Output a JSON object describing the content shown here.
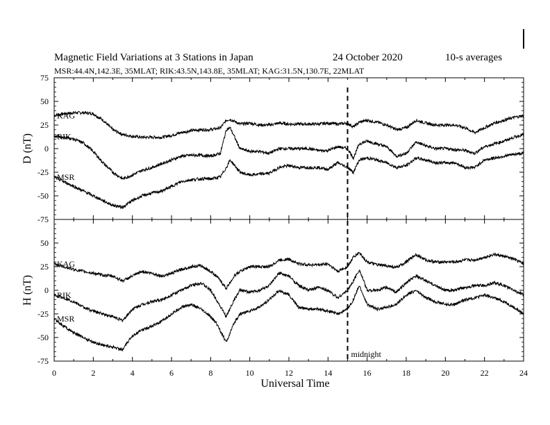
{
  "chart_data": {
    "type": "line",
    "title": "Magnetic Field Variations at 3 Stations in Japan",
    "date": "24 October 2020",
    "averaging": "10-s averages",
    "station_info": "MSR:44.4N,142.3E, 35MLAT;  RIK:43.5N,143.8E, 35MLAT;  KAG:31.5N,130.7E, 22MLAT",
    "xlabel": "Universal Time",
    "xlim": [
      0,
      24
    ],
    "xticks": [
      "0",
      "2",
      "4",
      "6",
      "8",
      "10",
      "12",
      "14",
      "16",
      "18",
      "20",
      "22",
      "24"
    ],
    "marker": {
      "x": 15,
      "label": "midnight"
    },
    "panels": [
      {
        "ylabel": "D (nT)",
        "ylim": [
          -75,
          75
        ],
        "yticks": [
          "75",
          "50",
          "25",
          "0",
          "-25",
          "-50",
          "-75"
        ],
        "series": [
          {
            "name": "KAG",
            "x": [
              0,
              0.5,
              1,
              1.5,
              2,
              2.5,
              3,
              3.5,
              4,
              4.5,
              5,
              5.5,
              6,
              6.5,
              7,
              7.5,
              8,
              8.5,
              8.8,
              9,
              9.5,
              10,
              10.5,
              11,
              11.5,
              12,
              12.5,
              13,
              13.5,
              14,
              14.5,
              15,
              15.3,
              15.6,
              16,
              16.5,
              17,
              17.5,
              18,
              18.5,
              19,
              19.5,
              20,
              20.5,
              21,
              21.5,
              22,
              22.5,
              23,
              23.5,
              24
            ],
            "y": [
              35,
              37,
              38,
              38,
              37,
              30,
              20,
              15,
              13,
              12,
              12,
              12,
              14,
              17,
              19,
              20,
              20,
              22,
              30,
              31,
              26,
              27,
              25,
              25,
              27,
              26,
              26,
              26,
              26,
              27,
              26,
              27,
              23,
              28,
              30,
              28,
              25,
              20,
              22,
              30,
              27,
              25,
              25,
              25,
              22,
              17,
              22,
              27,
              30,
              33,
              35
            ]
          },
          {
            "name": "RIK",
            "x": [
              0,
              0.5,
              1,
              1.5,
              2,
              2.5,
              3,
              3.5,
              4,
              4.5,
              5,
              5.5,
              6,
              6.5,
              7,
              7.5,
              8,
              8.5,
              8.8,
              9,
              9.5,
              10,
              10.5,
              11,
              11.5,
              12,
              12.5,
              13,
              13.5,
              14,
              14.5,
              15,
              15.3,
              15.6,
              16,
              16.5,
              17,
              17.5,
              18,
              18.5,
              19,
              19.5,
              20,
              20.5,
              21,
              21.5,
              22,
              22.5,
              23,
              23.5,
              24
            ],
            "y": [
              13,
              12,
              10,
              6,
              -3,
              -15,
              -25,
              -32,
              -28,
              -23,
              -20,
              -16,
              -12,
              -8,
              -7,
              -7,
              -8,
              -5,
              20,
              22,
              0,
              -3,
              -3,
              -5,
              0,
              0,
              0,
              0,
              -2,
              -2,
              2,
              0,
              -10,
              5,
              8,
              5,
              2,
              -8,
              -5,
              7,
              3,
              0,
              0,
              -1,
              -2,
              -5,
              2,
              5,
              8,
              12,
              15
            ]
          },
          {
            "name": "MSR",
            "x": [
              0,
              0.5,
              1,
              1.5,
              2,
              2.5,
              3,
              3.5,
              4,
              4.5,
              5,
              5.5,
              6,
              6.5,
              7,
              7.5,
              8,
              8.5,
              8.8,
              9,
              9.5,
              10,
              10.5,
              11,
              11.5,
              12,
              12.5,
              13,
              13.5,
              14,
              14.5,
              15,
              15.3,
              15.6,
              16,
              16.5,
              17,
              17.5,
              18,
              18.5,
              19,
              19.5,
              20,
              20.5,
              21,
              21.5,
              22,
              22.5,
              23,
              23.5,
              24
            ],
            "y": [
              -30,
              -35,
              -40,
              -45,
              -50,
              -55,
              -60,
              -62,
              -55,
              -50,
              -47,
              -45,
              -40,
              -35,
              -33,
              -32,
              -32,
              -30,
              -20,
              -12,
              -25,
              -28,
              -27,
              -26,
              -20,
              -18,
              -20,
              -20,
              -20,
              -22,
              -15,
              -20,
              -25,
              -12,
              -10,
              -12,
              -15,
              -20,
              -18,
              -10,
              -12,
              -15,
              -15,
              -15,
              -20,
              -20,
              -12,
              -10,
              -8,
              -6,
              -5
            ]
          }
        ]
      },
      {
        "ylabel": "H (nT)",
        "ylim": [
          -75,
          75
        ],
        "yticks": [
          "75",
          "50",
          "25",
          "0",
          "-25",
          "-50",
          "-75"
        ],
        "series": [
          {
            "name": "KAG",
            "x": [
              0,
              0.5,
              1,
              1.5,
              2,
              2.5,
              3,
              3.5,
              4,
              4.5,
              5,
              5.5,
              6,
              6.5,
              7,
              7.5,
              8,
              8.3,
              8.8,
              9.2,
              9.5,
              10,
              10.5,
              11,
              11.5,
              12,
              12.5,
              13,
              13.5,
              14,
              14.5,
              15,
              15.3,
              15.6,
              16,
              16.5,
              17,
              17.5,
              18,
              18.5,
              19,
              19.5,
              20,
              20.5,
              21,
              21.5,
              22,
              22.5,
              23,
              23.5,
              24
            ],
            "y": [
              28,
              25,
              22,
              20,
              18,
              16,
              15,
              10,
              15,
              20,
              18,
              15,
              18,
              22,
              25,
              26,
              20,
              15,
              2,
              15,
              20,
              25,
              25,
              25,
              32,
              33,
              28,
              27,
              27,
              28,
              20,
              25,
              35,
              40,
              30,
              27,
              26,
              24,
              30,
              38,
              32,
              30,
              30,
              30,
              32,
              32,
              35,
              38,
              36,
              33,
              28
            ]
          },
          {
            "name": "RIK",
            "x": [
              0,
              0.5,
              1,
              1.5,
              2,
              2.5,
              3,
              3.5,
              4,
              4.5,
              5,
              5.5,
              6,
              6.5,
              7,
              7.5,
              8,
              8.3,
              8.8,
              9.2,
              9.5,
              10,
              10.5,
              11,
              11.5,
              12,
              12.5,
              13,
              13.5,
              14,
              14.5,
              15,
              15.3,
              15.6,
              16,
              16.5,
              17,
              17.5,
              18,
              18.5,
              19,
              19.5,
              20,
              20.5,
              21,
              21.5,
              22,
              22.5,
              23,
              23.5,
              24
            ],
            "y": [
              -5,
              -8,
              -12,
              -18,
              -22,
              -25,
              -28,
              -32,
              -20,
              -15,
              -12,
              -10,
              -5,
              0,
              5,
              8,
              0,
              -10,
              -28,
              -10,
              0,
              -2,
              0,
              5,
              18,
              15,
              5,
              0,
              3,
              0,
              -8,
              0,
              10,
              22,
              0,
              0,
              3,
              -2,
              8,
              15,
              10,
              5,
              0,
              0,
              3,
              5,
              5,
              8,
              5,
              0,
              -5
            ]
          },
          {
            "name": "MSR",
            "x": [
              0,
              0.5,
              1,
              1.5,
              2,
              2.5,
              3,
              3.5,
              4,
              4.5,
              5,
              5.5,
              6,
              6.5,
              7,
              7.5,
              8,
              8.3,
              8.8,
              9.2,
              9.5,
              10,
              10.5,
              11,
              11.5,
              12,
              12.5,
              13,
              13.5,
              14,
              14.5,
              15,
              15.3,
              15.6,
              16,
              16.5,
              17,
              17.5,
              18,
              18.5,
              19,
              19.5,
              20,
              20.5,
              21,
              21.5,
              22,
              22.5,
              23,
              23.5,
              24
            ],
            "y": [
              -30,
              -38,
              -45,
              -50,
              -55,
              -58,
              -60,
              -63,
              -48,
              -42,
              -38,
              -33,
              -25,
              -18,
              -15,
              -20,
              -28,
              -35,
              -55,
              -35,
              -25,
              -22,
              -18,
              -10,
              0,
              -5,
              -18,
              -20,
              -20,
              -22,
              -25,
              -20,
              -10,
              5,
              -15,
              -20,
              -18,
              -15,
              -5,
              0,
              -8,
              -12,
              -15,
              -15,
              -10,
              -8,
              -5,
              -8,
              -12,
              -18,
              -25
            ]
          }
        ]
      }
    ]
  }
}
